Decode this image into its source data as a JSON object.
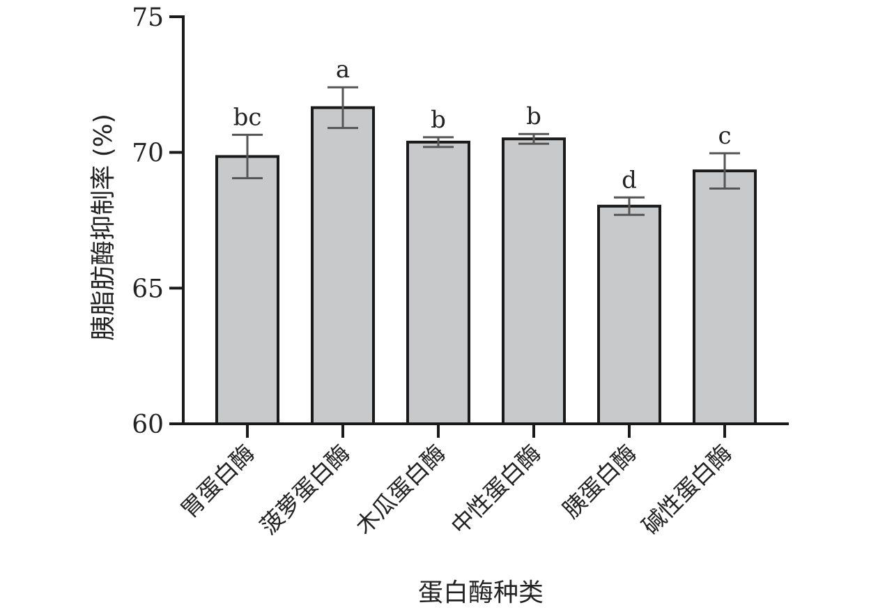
{
  "chart_data": {
    "type": "bar",
    "title": "",
    "xlabel": "蛋白酶种类",
    "ylabel": "胰脂肪酶抑制率 (%)",
    "ylim": [
      60,
      75
    ],
    "yticks": [
      60,
      65,
      70,
      75
    ],
    "categories": [
      "胃蛋白酶",
      "菠萝蛋白酶",
      "木瓜蛋白酶",
      "中性蛋白酶",
      "胰蛋白酶",
      "碱性蛋白酶"
    ],
    "values": [
      69.85,
      71.65,
      70.38,
      70.5,
      68.02,
      69.32
    ],
    "errors": [
      0.8,
      0.75,
      0.18,
      0.18,
      0.32,
      0.65
    ],
    "significance": [
      "bc",
      "a",
      "b",
      "b",
      "d",
      "c"
    ],
    "grid": false,
    "bar_color": "#c8c9cb",
    "bar_edge_color": "#1a1a1a"
  }
}
